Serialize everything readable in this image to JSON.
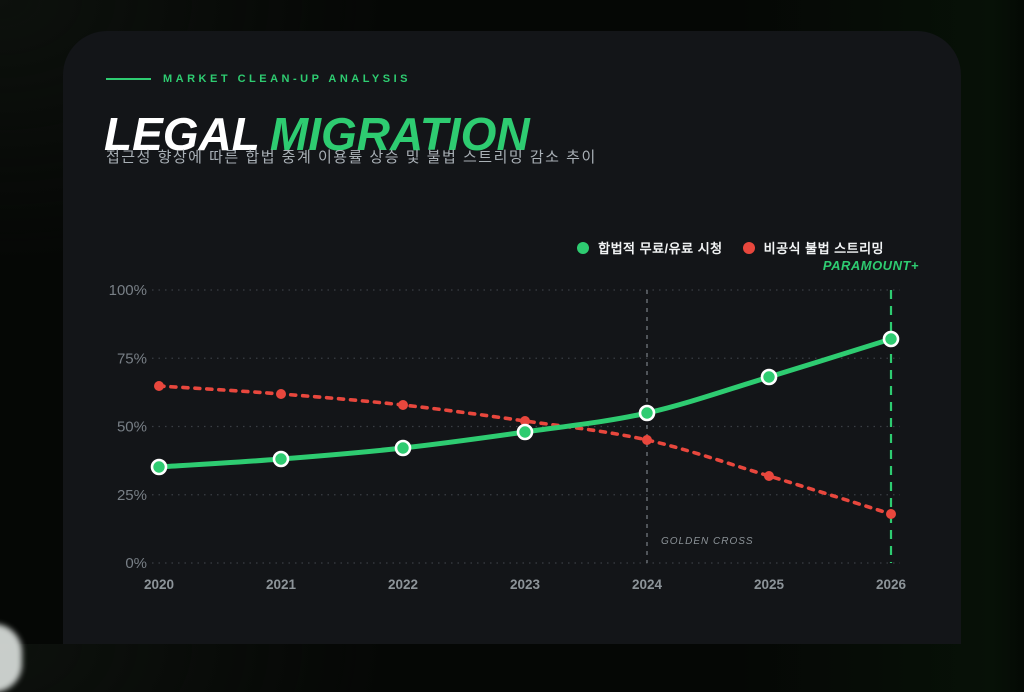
{
  "header": {
    "eyebrow": "MARKET CLEAN-UP ANALYSIS",
    "title_white": "LEGAL",
    "title_green": "MIGRATION",
    "subtitle": "접근성 향상에 따른 합법 중계 이용률 상승 및 불법 스트리밍 감소 추이"
  },
  "legend": {
    "brand": "PARAMOUNT+"
  },
  "colors": {
    "accent_green": "#2ecc71",
    "accent_red": "#e8473d",
    "card_bg": "#131518",
    "page_bg": "#050705",
    "grid": "#3a3e43",
    "ytick_text": "#787f86",
    "xtick_text": "#8d9499",
    "annotation_text": "#8b9297",
    "vline_gray": "#7a8085",
    "marker_ring": "#ffffff"
  },
  "chart_data": {
    "type": "line",
    "x": [
      2020,
      2021,
      2022,
      2023,
      2024,
      2025,
      2026
    ],
    "series": [
      {
        "name": "합법적 무료/유료 시청",
        "color": "#2ecc71",
        "style": "solid",
        "values": [
          35,
          38,
          42,
          48,
          55,
          68,
          82
        ]
      },
      {
        "name": "비공식 불법 스트리밍",
        "color": "#e8473d",
        "style": "dashed",
        "values": [
          65,
          62,
          58,
          52,
          45,
          32,
          18
        ]
      }
    ],
    "ylim": [
      0,
      100
    ],
    "yticks": [
      0,
      25,
      50,
      75,
      100
    ],
    "ytick_labels": [
      "0%",
      "25%",
      "50%",
      "75%",
      "100%"
    ],
    "grid": "horizontal-dotted",
    "legend_position": "top-right",
    "annotations": [
      {
        "x": 2024,
        "label": "GOLDEN CROSS",
        "style": "gray-dashed-vline"
      },
      {
        "x": 2026,
        "label": "",
        "style": "green-dashed-vline"
      }
    ]
  }
}
